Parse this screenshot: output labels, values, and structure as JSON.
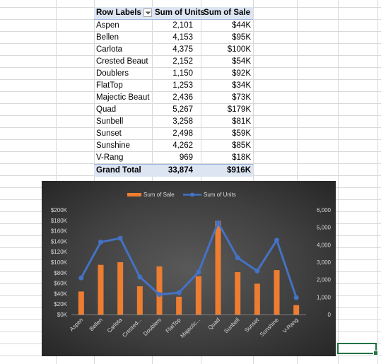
{
  "pivot": {
    "headers": [
      "Row Labels",
      "Sum of Units",
      "Sum of Sale"
    ],
    "rows": [
      {
        "label": "Aspen",
        "units": "2,101",
        "sale": "$44K"
      },
      {
        "label": "Bellen",
        "units": "4,153",
        "sale": "$95K"
      },
      {
        "label": "Carlota",
        "units": "4,375",
        "sale": "$100K"
      },
      {
        "label": "Crested Beaut",
        "units": "2,152",
        "sale": "$54K"
      },
      {
        "label": "Doublers",
        "units": "1,150",
        "sale": "$92K"
      },
      {
        "label": "FlatTop",
        "units": "1,253",
        "sale": "$34K"
      },
      {
        "label": "Majectic Beaut",
        "units": "2,436",
        "sale": "$73K"
      },
      {
        "label": "Quad",
        "units": "5,267",
        "sale": "$179K"
      },
      {
        "label": "Sunbell",
        "units": "3,258",
        "sale": "$81K"
      },
      {
        "label": "Sunset",
        "units": "2,498",
        "sale": "$59K"
      },
      {
        "label": "Sunshine",
        "units": "4,262",
        "sale": "$85K"
      },
      {
        "label": "V-Rang",
        "units": "969",
        "sale": "$18K"
      }
    ],
    "total": {
      "label": "Grand Total",
      "units": "33,874",
      "sale": "$916K"
    }
  },
  "chart_data": {
    "type": "bar",
    "title": "",
    "categories": [
      "Aspen",
      "Bellen",
      "Carlota",
      "Crested...",
      "Doublers",
      "FlatTop",
      "Majectic...",
      "Quad",
      "Sunbell",
      "Sunset",
      "Sunshine",
      "V-Rang"
    ],
    "series": [
      {
        "name": "Sum of Sale",
        "type": "bar",
        "axis": "left",
        "color": "#ed7d31",
        "values": [
          44,
          95,
          100,
          54,
          92,
          34,
          73,
          179,
          81,
          59,
          85,
          18
        ]
      },
      {
        "name": "Sum of Units",
        "type": "line",
        "axis": "right",
        "color": "#4472c4",
        "values": [
          2101,
          4153,
          4375,
          2152,
          1150,
          1253,
          2436,
          5267,
          3258,
          2498,
          4262,
          969
        ]
      }
    ],
    "left_axis": {
      "ticks": [
        "$0K",
        "$20K",
        "$40K",
        "$60K",
        "$80K",
        "$100K",
        "$120K",
        "$140K",
        "$160K",
        "$180K",
        "$200K"
      ],
      "min": 0,
      "max": 200,
      "unit": "$K"
    },
    "right_axis": {
      "ticks": [
        "0",
        "1,000",
        "2,000",
        "3,000",
        "4,000",
        "5,000",
        "6,000"
      ],
      "min": 0,
      "max": 6000
    },
    "legend_position": "top",
    "grid": false
  },
  "colors": {
    "sale": "#ed7d31",
    "units": "#4472c4",
    "pivot_header": "#dde5f3",
    "selection": "#217346"
  }
}
